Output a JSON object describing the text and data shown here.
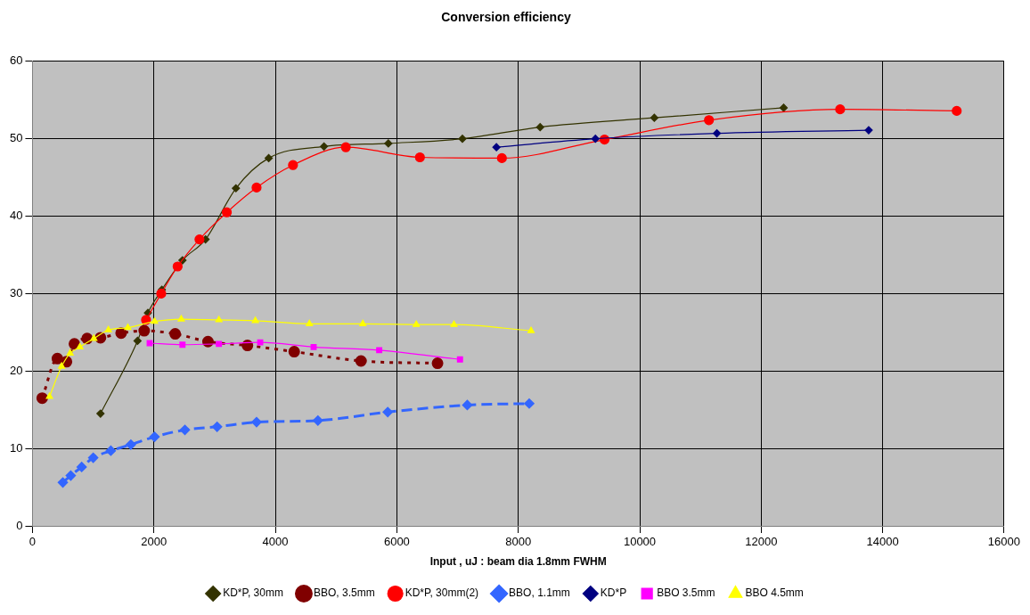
{
  "chart_data": {
    "type": "line",
    "title": "Conversion efficiency",
    "xlabel": "Input , uJ : beam dia 1.8mm FWHM",
    "xlim": [
      0,
      16000
    ],
    "xticks": [
      0,
      2000,
      4000,
      6000,
      8000,
      10000,
      12000,
      14000,
      16000
    ],
    "ylim": [
      0,
      60
    ],
    "yticks": [
      0,
      10,
      20,
      30,
      40,
      50,
      60
    ],
    "grid": true,
    "legend": "bottom",
    "series": [
      {
        "name": "KD*P, 30mm",
        "color": "#333300",
        "marker": "diamond",
        "line_style": "solid",
        "x": [
          1120,
          1730,
          1900,
          2130,
          2470,
          2850,
          3350,
          3890,
          4800,
          5860,
          7080,
          8360,
          10240,
          12370
        ],
        "values": [
          14.5,
          23.9,
          27.5,
          30.5,
          34.3,
          37,
          43.6,
          47.5,
          49,
          49.4,
          50,
          51.5,
          52.7,
          54
        ]
      },
      {
        "name": "BBO, 3.5mm",
        "color": "#800000",
        "marker": "circle",
        "line_style": "dotted",
        "x": [
          160,
          410,
          560,
          690,
          900,
          1120,
          1460,
          1840,
          2350,
          2890,
          3540,
          4310,
          5410,
          6670
        ],
        "values": [
          16.5,
          21.6,
          21.2,
          23.5,
          24.2,
          24.3,
          24.9,
          25.2,
          24.8,
          23.8,
          23.3,
          22.5,
          21.3,
          21
        ]
      },
      {
        "name": "KD*P, 30mm(2)",
        "color": "#ff0000",
        "marker": "circle",
        "line_style": "solid",
        "x": [
          1870,
          2120,
          2390,
          2750,
          3200,
          3690,
          4290,
          5160,
          6380,
          7730,
          9420,
          11140,
          13300,
          15220
        ],
        "values": [
          26.6,
          30,
          33.5,
          37,
          40.5,
          43.7,
          46.6,
          48.9,
          47.6,
          47.5,
          49.9,
          52.4,
          53.8,
          53.6
        ]
      },
      {
        "name": "BBO, 1.1mm",
        "color": "#3366ff",
        "marker": "diamond",
        "line_style": "dashed",
        "x": [
          500,
          630,
          810,
          1000,
          1290,
          1620,
          2010,
          2510,
          3040,
          3690,
          4700,
          5850,
          7160,
          8180
        ],
        "values": [
          5.6,
          6.5,
          7.6,
          8.8,
          9.7,
          10.5,
          11.5,
          12.4,
          12.8,
          13.4,
          13.6,
          14.7,
          15.6,
          15.8
        ]
      },
      {
        "name": "KD*P",
        "color": "#000080",
        "marker": "diamond",
        "line_style": "solid",
        "x": [
          7640,
          9270,
          11270,
          13770
        ],
        "values": [
          48.9,
          50,
          50.7,
          51.1
        ]
      },
      {
        "name": "BBO 3.5mm",
        "color": "#ff00ff",
        "marker": "square",
        "line_style": "solid",
        "x": [
          1930,
          2470,
          3070,
          3750,
          4630,
          5710,
          7040
        ],
        "values": [
          23.6,
          23.4,
          23.5,
          23.7,
          23.1,
          22.7,
          21.5
        ]
      },
      {
        "name": "BBO 4.5mm",
        "color": "#ffff00",
        "marker": "triangle",
        "line_style": "solid",
        "x": [
          280,
          480,
          620,
          780,
          1010,
          1250,
          1570,
          2010,
          2450,
          3070,
          3670,
          4560,
          5440,
          6320,
          6940,
          8210
        ],
        "values": [
          16.7,
          20.6,
          22.3,
          23.1,
          24.2,
          25.3,
          25.6,
          26.4,
          26.7,
          26.6,
          26.5,
          26.1,
          26.1,
          26,
          26,
          25.2
        ]
      }
    ]
  }
}
